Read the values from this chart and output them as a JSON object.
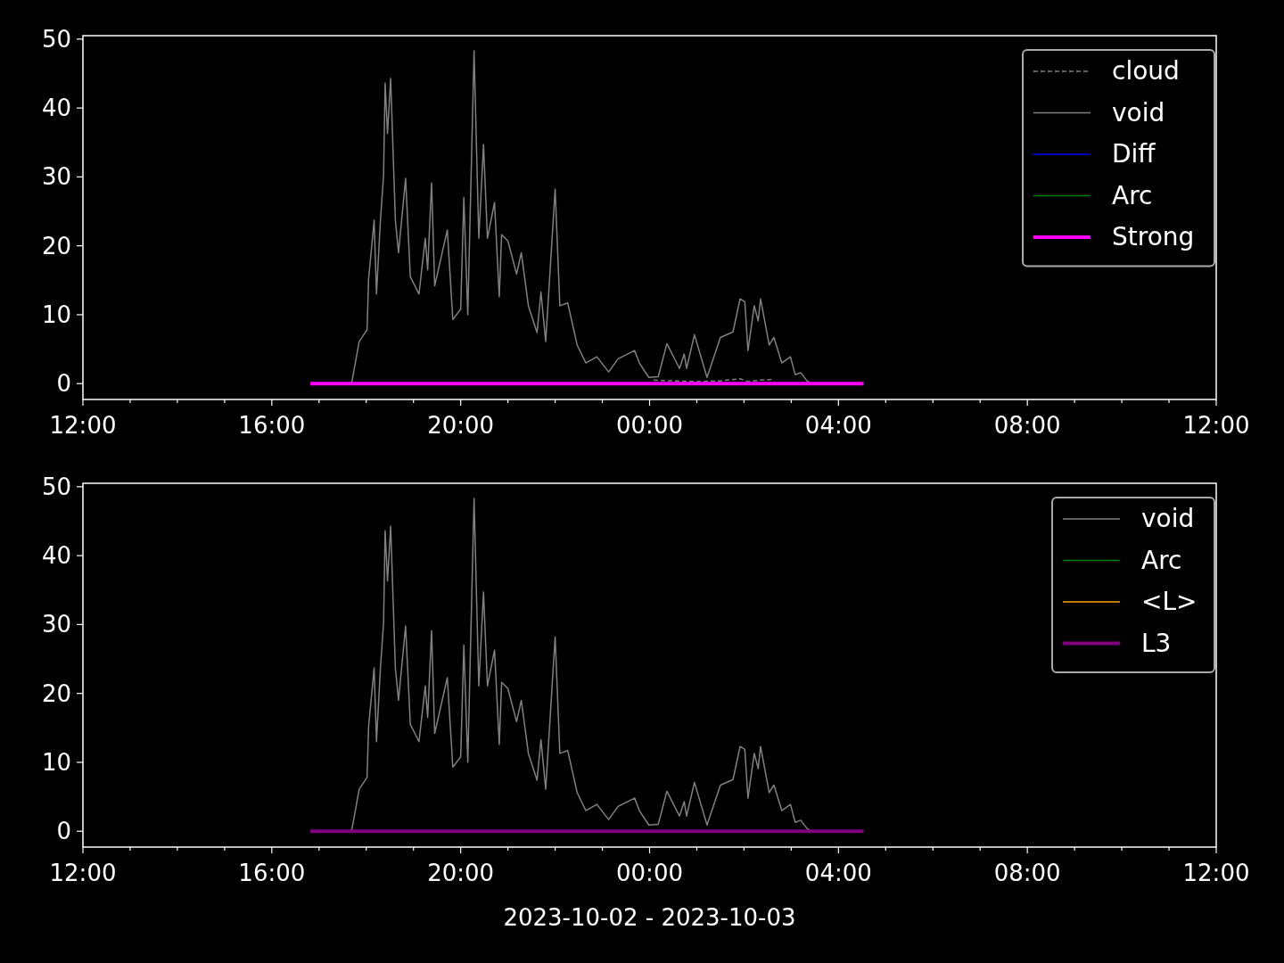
{
  "chart_data": [
    {
      "type": "line",
      "xlim": [
        "2023-10-02T12:00",
        "2023-10-03T12:00"
      ],
      "ylim": [
        -2.3,
        50.5
      ],
      "yticks": [
        0,
        10,
        20,
        30,
        40,
        50
      ],
      "xticks": [
        {
          "value": "2023-10-02T12:00",
          "label": "12:00"
        },
        {
          "value": "2023-10-02T13:00",
          "label": null
        },
        {
          "value": "2023-10-02T14:00",
          "label": null
        },
        {
          "value": "2023-10-02T15:00",
          "label": null
        },
        {
          "value": "2023-10-02T16:00",
          "label": "16:00"
        },
        {
          "value": "2023-10-02T17:00",
          "label": null
        },
        {
          "value": "2023-10-02T18:00",
          "label": null
        },
        {
          "value": "2023-10-02T19:00",
          "label": null
        },
        {
          "value": "2023-10-02T20:00",
          "label": "20:00"
        },
        {
          "value": "2023-10-02T21:00",
          "label": null
        },
        {
          "value": "2023-10-02T22:00",
          "label": null
        },
        {
          "value": "2023-10-02T23:00",
          "label": null
        },
        {
          "value": "2023-10-03T00:00",
          "label": "00:00"
        },
        {
          "value": "2023-10-03T01:00",
          "label": null
        },
        {
          "value": "2023-10-03T02:00",
          "label": null
        },
        {
          "value": "2023-10-03T03:00",
          "label": null
        },
        {
          "value": "2023-10-03T04:00",
          "label": "04:00"
        },
        {
          "value": "2023-10-03T05:00",
          "label": null
        },
        {
          "value": "2023-10-03T06:00",
          "label": null
        },
        {
          "value": "2023-10-03T07:00",
          "label": null
        },
        {
          "value": "2023-10-03T08:00",
          "label": "08:00"
        },
        {
          "value": "2023-10-03T09:00",
          "label": null
        },
        {
          "value": "2023-10-03T10:00",
          "label": null
        },
        {
          "value": "2023-10-03T11:00",
          "label": null
        },
        {
          "value": "2023-10-03T12:00",
          "label": "12:00"
        }
      ],
      "grid": false,
      "legend": "top right",
      "series": [
        {
          "name": "cloud",
          "color": "#808080",
          "line_style": "dashed",
          "x": [
            "2023-10-03T00:05",
            "2023-10-03T00:30",
            "2023-10-03T01:00",
            "2023-10-03T01:30",
            "2023-10-03T01:55",
            "2023-10-03T02:05",
            "2023-10-03T02:20",
            "2023-10-03T02:35"
          ],
          "values": [
            0.5,
            0.4,
            0.3,
            0.4,
            0.7,
            0.3,
            0.5,
            0.6
          ]
        },
        {
          "name": "void",
          "color": "#808080",
          "line_style": "solid",
          "x": [
            "2023-10-02T17:40",
            "2023-10-02T17:42",
            "2023-10-02T17:51",
            "2023-10-02T18:01",
            "2023-10-02T18:03",
            "2023-10-02T18:10",
            "2023-10-02T18:13",
            "2023-10-02T18:18",
            "2023-10-02T18:22",
            "2023-10-02T18:24",
            "2023-10-02T18:27",
            "2023-10-02T18:31",
            "2023-10-02T18:37",
            "2023-10-02T18:41",
            "2023-10-02T18:50",
            "2023-10-02T18:56",
            "2023-10-02T19:07",
            "2023-10-02T19:15",
            "2023-10-02T19:18",
            "2023-10-02T19:23",
            "2023-10-02T19:27",
            "2023-10-02T19:43",
            "2023-10-02T19:50",
            "2023-10-02T20:00",
            "2023-10-02T20:04",
            "2023-10-02T20:09",
            "2023-10-02T20:17",
            "2023-10-02T20:23",
            "2023-10-02T20:29",
            "2023-10-02T20:34",
            "2023-10-02T20:43",
            "2023-10-02T20:49",
            "2023-10-02T20:52",
            "2023-10-02T21:00",
            "2023-10-02T21:11",
            "2023-10-02T21:17",
            "2023-10-02T21:26",
            "2023-10-02T21:37",
            "2023-10-02T21:42",
            "2023-10-02T21:48",
            "2023-10-02T22:00",
            "2023-10-02T22:06",
            "2023-10-02T22:16",
            "2023-10-02T22:28",
            "2023-10-02T22:39",
            "2023-10-02T22:53",
            "2023-10-02T23:08",
            "2023-10-02T23:20",
            "2023-10-02T23:41",
            "2023-10-02T23:47",
            "2023-10-02T23:59",
            "2023-10-03T00:11",
            "2023-10-03T00:22",
            "2023-10-03T00:38",
            "2023-10-03T00:44",
            "2023-10-03T00:47",
            "2023-10-03T00:57",
            "2023-10-03T01:13",
            "2023-10-03T01:30",
            "2023-10-03T01:46",
            "2023-10-03T01:55",
            "2023-10-03T02:01",
            "2023-10-03T02:05",
            "2023-10-03T02:13",
            "2023-10-03T02:18",
            "2023-10-03T02:21",
            "2023-10-03T02:32",
            "2023-10-03T02:38",
            "2023-10-03T02:48",
            "2023-10-03T02:59",
            "2023-10-03T03:05",
            "2023-10-03T03:12",
            "2023-10-03T03:20",
            "2023-10-03T03:23"
          ],
          "values": [
            0,
            0.4,
            6.1,
            7.8,
            15.2,
            23.7,
            13,
            23.7,
            30.2,
            43.6,
            36.3,
            44.3,
            23.7,
            19,
            29.8,
            15.5,
            13,
            21.1,
            16.5,
            29.1,
            14.2,
            22.3,
            9.3,
            10.8,
            27,
            10,
            48.3,
            21.1,
            34.7,
            21.1,
            26.3,
            12.6,
            21.6,
            20.7,
            15.9,
            19,
            11.3,
            7.4,
            13.3,
            6.1,
            28.2,
            11.3,
            11.7,
            5.6,
            3,
            3.9,
            1.7,
            3.6,
            4.8,
            3,
            0.9,
            1,
            5.8,
            2.2,
            4.3,
            2.2,
            7.1,
            0.9,
            6.7,
            7.5,
            12.3,
            11.9,
            4.8,
            11.3,
            9.1,
            12.3,
            5.6,
            6.7,
            3,
            3.9,
            1.3,
            1.6,
            0.4,
            0.2
          ]
        },
        {
          "name": "Diff",
          "color": "#0000ff",
          "line_style": "solid"
        },
        {
          "name": "Arc",
          "color": "#008000",
          "line_style": "solid"
        },
        {
          "name": "Strong",
          "color": "#ff00ff",
          "line_style": "solid",
          "x": [
            "2023-10-02T16:49",
            "2023-10-03T04:32"
          ],
          "values": [
            0,
            0
          ]
        }
      ]
    },
    {
      "type": "line",
      "xlim": [
        "2023-10-02T12:00",
        "2023-10-03T12:00"
      ],
      "ylim": [
        -2.3,
        50.5
      ],
      "yticks": [
        0,
        10,
        20,
        30,
        40,
        50
      ],
      "xlabel": "2023-10-02 - 2023-10-03",
      "xticks": [
        {
          "value": "2023-10-02T12:00",
          "label": "12:00"
        },
        {
          "value": "2023-10-02T13:00",
          "label": null
        },
        {
          "value": "2023-10-02T14:00",
          "label": null
        },
        {
          "value": "2023-10-02T15:00",
          "label": null
        },
        {
          "value": "2023-10-02T16:00",
          "label": "16:00"
        },
        {
          "value": "2023-10-02T17:00",
          "label": null
        },
        {
          "value": "2023-10-02T18:00",
          "label": null
        },
        {
          "value": "2023-10-02T19:00",
          "label": null
        },
        {
          "value": "2023-10-02T20:00",
          "label": "20:00"
        },
        {
          "value": "2023-10-02T21:00",
          "label": null
        },
        {
          "value": "2023-10-02T22:00",
          "label": null
        },
        {
          "value": "2023-10-02T23:00",
          "label": null
        },
        {
          "value": "2023-10-03T00:00",
          "label": "00:00"
        },
        {
          "value": "2023-10-03T01:00",
          "label": null
        },
        {
          "value": "2023-10-03T02:00",
          "label": null
        },
        {
          "value": "2023-10-03T03:00",
          "label": null
        },
        {
          "value": "2023-10-03T04:00",
          "label": "04:00"
        },
        {
          "value": "2023-10-03T05:00",
          "label": null
        },
        {
          "value": "2023-10-03T06:00",
          "label": null
        },
        {
          "value": "2023-10-03T07:00",
          "label": null
        },
        {
          "value": "2023-10-03T08:00",
          "label": "08:00"
        },
        {
          "value": "2023-10-03T09:00",
          "label": null
        },
        {
          "value": "2023-10-03T10:00",
          "label": null
        },
        {
          "value": "2023-10-03T11:00",
          "label": null
        },
        {
          "value": "2023-10-03T12:00",
          "label": "12:00"
        }
      ],
      "grid": false,
      "legend": "top right",
      "series": [
        {
          "name": "void",
          "color": "#808080",
          "line_style": "solid",
          "x": [
            "2023-10-02T17:40",
            "2023-10-02T17:42",
            "2023-10-02T17:51",
            "2023-10-02T18:01",
            "2023-10-02T18:03",
            "2023-10-02T18:10",
            "2023-10-02T18:13",
            "2023-10-02T18:18",
            "2023-10-02T18:22",
            "2023-10-02T18:24",
            "2023-10-02T18:27",
            "2023-10-02T18:31",
            "2023-10-02T18:37",
            "2023-10-02T18:41",
            "2023-10-02T18:50",
            "2023-10-02T18:56",
            "2023-10-02T19:07",
            "2023-10-02T19:15",
            "2023-10-02T19:18",
            "2023-10-02T19:23",
            "2023-10-02T19:27",
            "2023-10-02T19:43",
            "2023-10-02T19:50",
            "2023-10-02T20:00",
            "2023-10-02T20:04",
            "2023-10-02T20:09",
            "2023-10-02T20:17",
            "2023-10-02T20:23",
            "2023-10-02T20:29",
            "2023-10-02T20:34",
            "2023-10-02T20:43",
            "2023-10-02T20:49",
            "2023-10-02T20:52",
            "2023-10-02T21:00",
            "2023-10-02T21:11",
            "2023-10-02T21:17",
            "2023-10-02T21:26",
            "2023-10-02T21:37",
            "2023-10-02T21:42",
            "2023-10-02T21:48",
            "2023-10-02T22:00",
            "2023-10-02T22:06",
            "2023-10-02T22:16",
            "2023-10-02T22:28",
            "2023-10-02T22:39",
            "2023-10-02T22:53",
            "2023-10-02T23:08",
            "2023-10-02T23:20",
            "2023-10-02T23:41",
            "2023-10-02T23:47",
            "2023-10-02T23:59",
            "2023-10-03T00:11",
            "2023-10-03T00:22",
            "2023-10-03T00:38",
            "2023-10-03T00:44",
            "2023-10-03T00:47",
            "2023-10-03T00:57",
            "2023-10-03T01:13",
            "2023-10-03T01:30",
            "2023-10-03T01:46",
            "2023-10-03T01:55",
            "2023-10-03T02:01",
            "2023-10-03T02:05",
            "2023-10-03T02:13",
            "2023-10-03T02:18",
            "2023-10-03T02:21",
            "2023-10-03T02:32",
            "2023-10-03T02:38",
            "2023-10-03T02:48",
            "2023-10-03T02:59",
            "2023-10-03T03:05",
            "2023-10-03T03:12",
            "2023-10-03T03:20",
            "2023-10-03T03:23"
          ],
          "values": [
            0,
            0.4,
            6.1,
            7.8,
            15.2,
            23.7,
            13,
            23.7,
            30.2,
            43.6,
            36.3,
            44.3,
            23.7,
            19,
            29.8,
            15.5,
            13,
            21.1,
            16.5,
            29.1,
            14.2,
            22.3,
            9.3,
            10.8,
            27,
            10,
            48.3,
            21.1,
            34.7,
            21.1,
            26.3,
            12.6,
            21.6,
            20.7,
            15.9,
            19,
            11.3,
            7.4,
            13.3,
            6.1,
            28.2,
            11.3,
            11.7,
            5.6,
            3,
            3.9,
            1.7,
            3.6,
            4.8,
            3,
            0.9,
            1,
            5.8,
            2.2,
            4.3,
            2.2,
            7.1,
            0.9,
            6.7,
            7.5,
            12.3,
            11.9,
            4.8,
            11.3,
            9.1,
            12.3,
            5.6,
            6.7,
            3,
            3.9,
            1.3,
            1.6,
            0.4,
            0.2
          ]
        },
        {
          "name": "Arc",
          "color": "#008000",
          "line_style": "solid"
        },
        {
          "name": "<L>",
          "color": "#ffa500",
          "line_style": "solid"
        },
        {
          "name": "L3",
          "color": "#800080",
          "line_style": "solid",
          "x": [
            "2023-10-02T16:49",
            "2023-10-03T04:32"
          ],
          "values": [
            0,
            0
          ]
        }
      ]
    }
  ]
}
